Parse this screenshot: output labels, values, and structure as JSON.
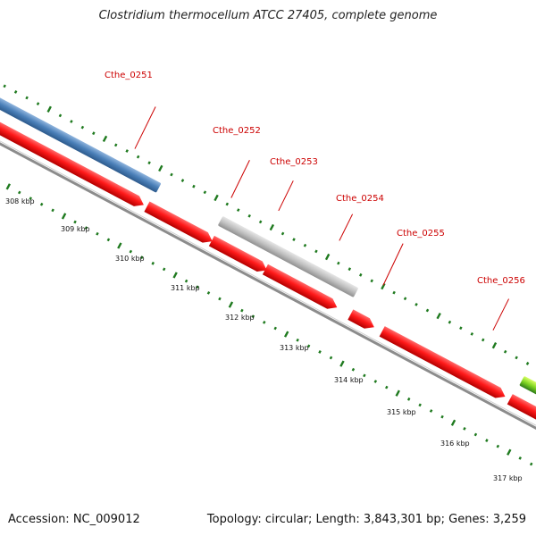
{
  "header": {
    "title": "Clostridium thermocellum ATCC 27405, complete genome"
  },
  "footer": {
    "accession": "Accession: NC_009012",
    "stats": "Topology: circular; Length: 3,843,301 bp; Genes: 3,259"
  },
  "colors": {
    "backbone": "#8c8c8c",
    "cds": "#ff1a1a",
    "blue_feature": "#4a7fb8",
    "gray_feature": "#c0c0c0",
    "green_feature": "#7ed321",
    "tick": "#1f7a1f",
    "gene_label": "#cc0000"
  },
  "genes": [
    {
      "label": "Cthe_0251"
    },
    {
      "label": "Cthe_0252"
    },
    {
      "label": "Cthe_0253"
    },
    {
      "label": "Cthe_0254"
    },
    {
      "label": "Cthe_0255"
    },
    {
      "label": "Cthe_0256"
    }
  ],
  "scale": {
    "labels": [
      "308 kbp",
      "309 kbp",
      "310 kbp",
      "311 kbp",
      "312 kbp",
      "313 kbp",
      "314 kbp",
      "315 kbp",
      "316 kbp",
      "317 kbp"
    ]
  }
}
